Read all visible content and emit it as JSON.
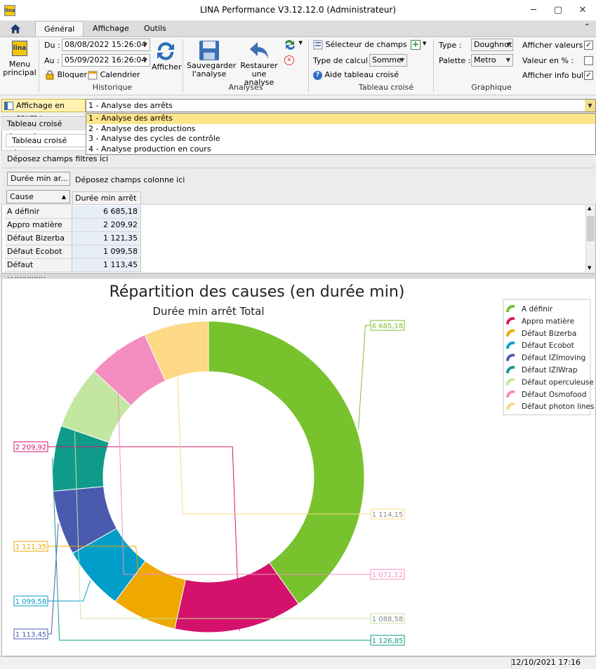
{
  "window": {
    "title": "LINA Performance  V3.12.12.0  (Administrateur)",
    "controls": {
      "minimize": "─",
      "maximize": "▢",
      "close": "✕"
    }
  },
  "app_icon_text": "lina",
  "tabs": [
    {
      "label": "Général",
      "active": true
    },
    {
      "label": "Affichage",
      "active": false
    },
    {
      "label": "Outils",
      "active": false
    }
  ],
  "ribbon": {
    "menu_principal": "Menu principal",
    "historique": {
      "du_label": "Du :",
      "du_value": "08/08/2022 15:26:04",
      "au_label": "Au :",
      "au_value": "05/09/2022 16:26:04",
      "bloquer": "Bloquer",
      "calendrier": "Calendrier",
      "afficher": "Afficher",
      "group_label": "Historique"
    },
    "analyses": {
      "sauvegarder": "Sauvegarder l'analyse",
      "restaurer": "Restaurer une analyse",
      "group_label": "Analyses"
    },
    "tableau_croise": {
      "selecteur": "Sélecteur de champs",
      "type_calcul_label": "Type de calcul :",
      "type_calcul_value": "Somme",
      "aide": "Aide tableau croisé",
      "group_label": "Tableau croisé"
    },
    "graphique": {
      "type_label": "Type   :",
      "type_value": "Doughnut",
      "palette_label": "Palette  :",
      "palette_value": "Metro",
      "afficher_valeurs": "Afficher valeurs :",
      "afficher_valeurs_checked": true,
      "valeur_pct": "Valeur en % :",
      "valeur_pct_checked": false,
      "afficher_info_bulle": "Afficher info bulle",
      "afficher_info_bulle_checked": true,
      "group_label": "Graphique"
    }
  },
  "affichage": {
    "label": "Affichage en cours :",
    "selected": "1 - Analyse des arrêts",
    "options": [
      "1 - Analyse des arrêts",
      "2 - Analyse des productions",
      "3 - Analyse des cycles de contrôle",
      "4 - Analyse production en cours"
    ]
  },
  "pivot": {
    "tabstrip_label": "Tableau croisé dynamic",
    "tab_label": "Tableau croisé dynam",
    "filter_zone": "Déposez champs filtres ici",
    "data_field_btn": "Durée min ar...",
    "column_zone": "Déposez champs colonne ici",
    "row_field_btn": "Cause",
    "row_field_sort": "▲",
    "value_header": "Durée min arrêt ...",
    "rows": [
      {
        "name": "A définir",
        "value": "6 685,18"
      },
      {
        "name": "Appro matière",
        "value": "2 209,92"
      },
      {
        "name": "Défaut Bizerba",
        "value": "1 121,35"
      },
      {
        "name": "Défaut Ecobot",
        "value": "1 099,58"
      },
      {
        "name": "Défaut IZImoving",
        "value": "1 113,45"
      }
    ]
  },
  "chart_data": {
    "type": "doughnut",
    "title": "Répartition des causes (en durée min)",
    "subtitle": "Durée min arrêt Total",
    "legend_position": "top-right",
    "series": [
      {
        "name": "A définir",
        "value": 6685.18,
        "label": "6 685,18",
        "color": "#78c22e"
      },
      {
        "name": "Appro matière",
        "value": 2209.92,
        "label": "2 209,92",
        "color": "#d4126c"
      },
      {
        "name": "Défaut Bizerba",
        "value": 1121.35,
        "label": "1 121,35",
        "color": "#eea800"
      },
      {
        "name": "Défaut Ecobot",
        "value": 1099.58,
        "label": "1 099,58",
        "color": "#009ec9"
      },
      {
        "name": "Défaut IZImoving",
        "value": 1113.45,
        "label": "1 113,45",
        "color": "#4a5aae"
      },
      {
        "name": "Défaut IZIWrap",
        "value": 1126.85,
        "label": "1 126,85",
        "color": "#0f9b8a"
      },
      {
        "name": "Défaut operculeuse",
        "value": 1088.58,
        "label": "1 088,58",
        "color": "#c3e7a0"
      },
      {
        "name": "Défaut Osmofood",
        "value": 1071.12,
        "label": "1 071,12",
        "color": "#f48cbf"
      },
      {
        "name": "Défaut photon lines",
        "value": 1114.15,
        "label": "1 114,15",
        "color": "#fdd985"
      }
    ]
  },
  "status": {
    "datetime": "12/10/2021 17:16"
  }
}
